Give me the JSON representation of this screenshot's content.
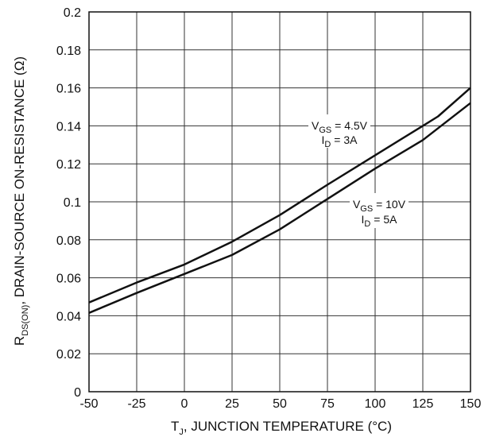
{
  "chart_data": {
    "type": "line",
    "title": "",
    "xlabel": {
      "main": "T",
      "sub": "J",
      "rest": ", JUNCTION TEMPERATURE (°C)"
    },
    "ylabel": {
      "main": "R",
      "sub": "DS(ON)",
      "rest": ", DRAIN-SOURCE ON-RESISTANCE (Ω)"
    },
    "xlim": [
      -50,
      150
    ],
    "ylim": [
      0,
      0.2
    ],
    "grid": true,
    "x_ticks": [
      "-50",
      "-25",
      "0",
      "25",
      "50",
      "75",
      "100",
      "125",
      "150"
    ],
    "y_ticks": [
      "0",
      "0.02",
      "0.04",
      "0.06",
      "0.08",
      "0.1",
      "0.12",
      "0.14",
      "0.16",
      "0.18",
      "0.2"
    ],
    "series": [
      {
        "name": "VGS = 4.5V, ID = 3A",
        "x": [
          -50,
          -25,
          0,
          25,
          50,
          75,
          100,
          125,
          133,
          150
        ],
        "y": [
          0.047,
          0.0575,
          0.067,
          0.079,
          0.093,
          0.109,
          0.1245,
          0.14,
          0.145,
          0.16
        ]
      },
      {
        "name": "VGS = 10V, ID = 5A",
        "x": [
          -50,
          -25,
          0,
          25,
          50,
          75,
          100,
          125,
          150
        ],
        "y": [
          0.0415,
          0.052,
          0.062,
          0.072,
          0.0855,
          0.1015,
          0.1175,
          0.1325,
          0.152
        ]
      }
    ],
    "annotations": [
      {
        "line1_main": "V",
        "line1_sub": "GS",
        "line1_rest": " = 4.5V",
        "line2_main": "I",
        "line2_sub": "D",
        "line2_rest": " = 3A"
      },
      {
        "line1_main": "V",
        "line1_sub": "GS",
        "line1_rest": " = 10V",
        "line2_main": "I",
        "line2_sub": "D",
        "line2_rest": " = 5A"
      }
    ]
  }
}
